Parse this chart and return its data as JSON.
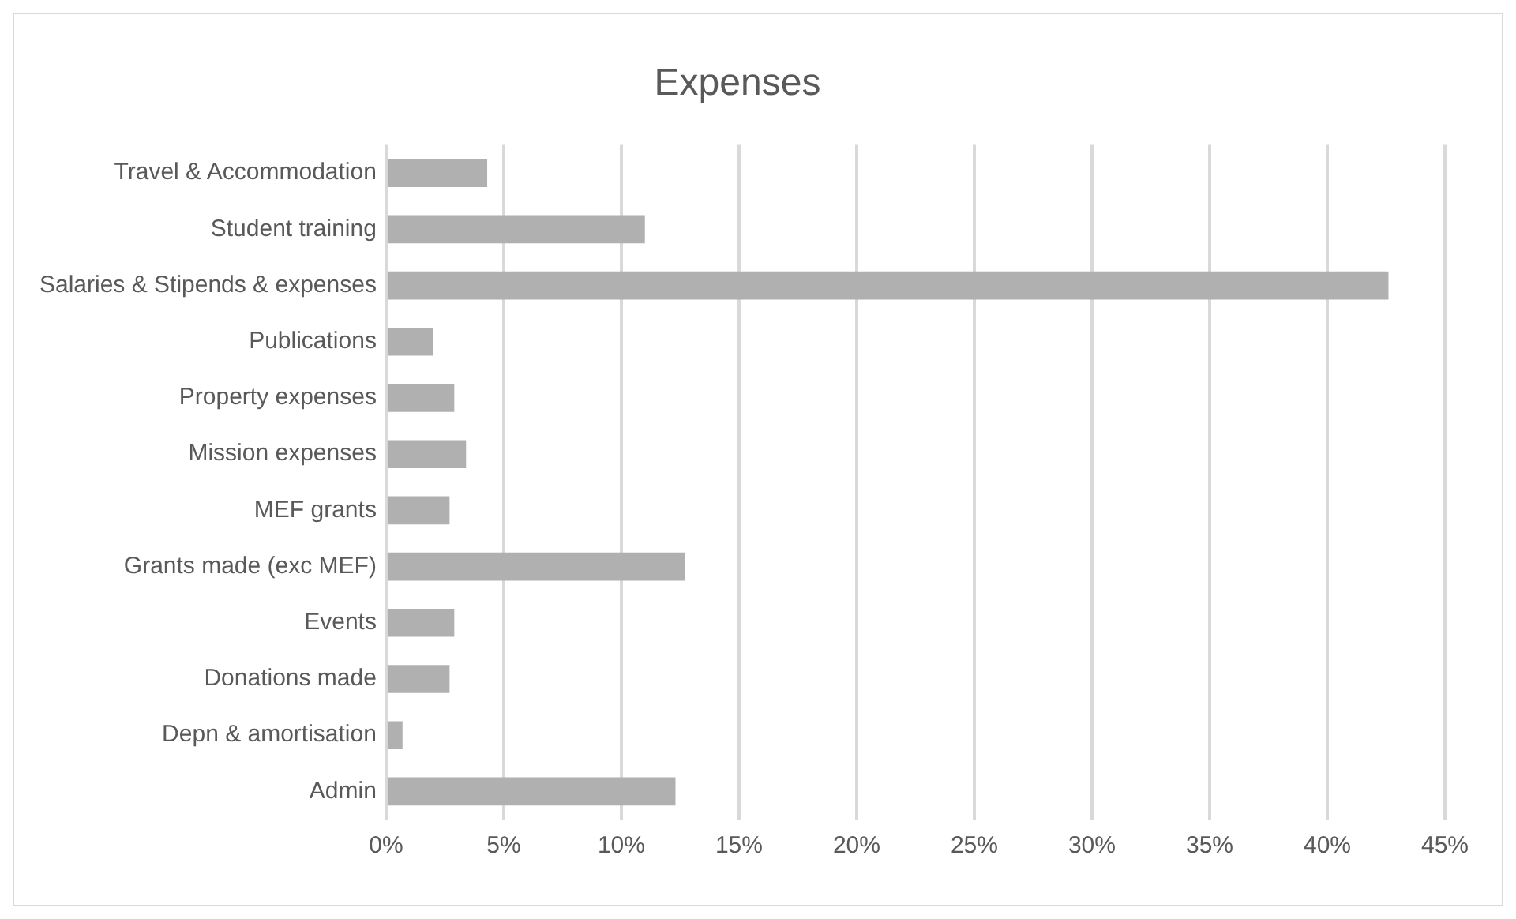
{
  "chart_data": {
    "type": "bar",
    "orientation": "horizontal",
    "title": "Expenses",
    "categories": [
      "Travel & Accommodation",
      "Student training",
      "Salaries & Stipends & expenses",
      "Publications",
      "Property expenses",
      "Mission expenses",
      "MEF grants",
      "Grants made (exc MEF)",
      "Events",
      "Donations made",
      "Depn & amortisation",
      "Admin"
    ],
    "values": [
      4.3,
      11.0,
      42.6,
      2.0,
      2.9,
      3.4,
      2.7,
      12.7,
      2.9,
      2.7,
      0.7,
      12.3
    ],
    "color": "#b0b0b0",
    "xlim": [
      0,
      45
    ],
    "xticks": [
      {
        "value": 0,
        "label": "0%"
      },
      {
        "value": 5,
        "label": "5%"
      },
      {
        "value": 10,
        "label": "10%"
      },
      {
        "value": 15,
        "label": "15%"
      },
      {
        "value": 20,
        "label": "20%"
      },
      {
        "value": 25,
        "label": "25%"
      },
      {
        "value": 30,
        "label": "30%"
      },
      {
        "value": 35,
        "label": "35%"
      },
      {
        "value": 40,
        "label": "40%"
      },
      {
        "value": 45,
        "label": "45%"
      }
    ],
    "grid": "x",
    "legend": false
  }
}
